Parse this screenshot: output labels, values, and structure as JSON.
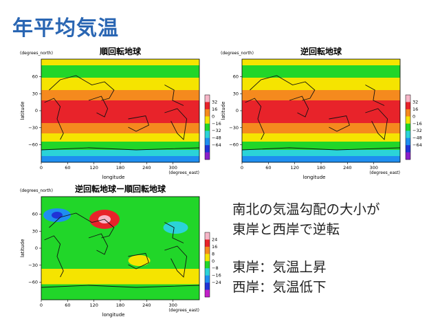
{
  "slide": {
    "title": "年平均気温"
  },
  "panels": [
    {
      "title": "順回転地球",
      "ylabel": "latitude",
      "xlabel": "longitude",
      "yunit": "(degrees_north)",
      "xunit": "(degrees_east)",
      "yticks": [
        "60",
        "30",
        "0",
        "−30",
        "−60"
      ],
      "xticks": [
        "0",
        "60",
        "120",
        "180",
        "240",
        "300"
      ],
      "colorbar": [
        "32",
        "16",
        "0",
        "−16",
        "−32",
        "−48",
        "−64"
      ],
      "colors": [
        "#f7b6c8",
        "#e8232a",
        "#f58a1e",
        "#f5e400",
        "#21d629",
        "#2bd3d8",
        "#1e8ef0",
        "#2033d6",
        "#8a1fc9"
      ]
    },
    {
      "title": "逆回転地球",
      "ylabel": "latitude",
      "xlabel": "longitude",
      "yunit": "(degrees_north)",
      "xunit": "(degrees_east)",
      "yticks": [
        "60",
        "30",
        "0",
        "−30",
        "−60"
      ],
      "xticks": [
        "0",
        "60",
        "120",
        "180",
        "240",
        "300"
      ],
      "colorbar": [
        "32",
        "16",
        "0",
        "−16",
        "−32",
        "−48",
        "−64"
      ],
      "colors": [
        "#f7b6c8",
        "#e8232a",
        "#f58a1e",
        "#f5e400",
        "#21d629",
        "#2bd3d8",
        "#1e8ef0",
        "#2033d6",
        "#8a1fc9"
      ]
    },
    {
      "title": "逆回転地球ー順回転地球",
      "ylabel": "latitude",
      "xlabel": "longitude",
      "yunit": "(degrees_north)",
      "xunit": "(degrees_east)",
      "yticks": [
        "60",
        "30",
        "0",
        "−30",
        "−60"
      ],
      "xticks": [
        "0",
        "60",
        "120",
        "180",
        "240",
        "300"
      ],
      "colorbar": [
        "24",
        "16",
        "8",
        "0",
        "−8",
        "−16",
        "−24"
      ],
      "colors": [
        "#f7b6c8",
        "#e8232a",
        "#f58a1e",
        "#f5e400",
        "#21d629",
        "#2bd3d8",
        "#1e8ef0",
        "#2033d6",
        "#c31fc9"
      ]
    }
  ],
  "summary": {
    "line1": "南北の気温勾配の大小が",
    "line2": "東岸と西岸で逆転",
    "line3": "東岸：気温上昇",
    "line4": "西岸：気温低下"
  }
}
